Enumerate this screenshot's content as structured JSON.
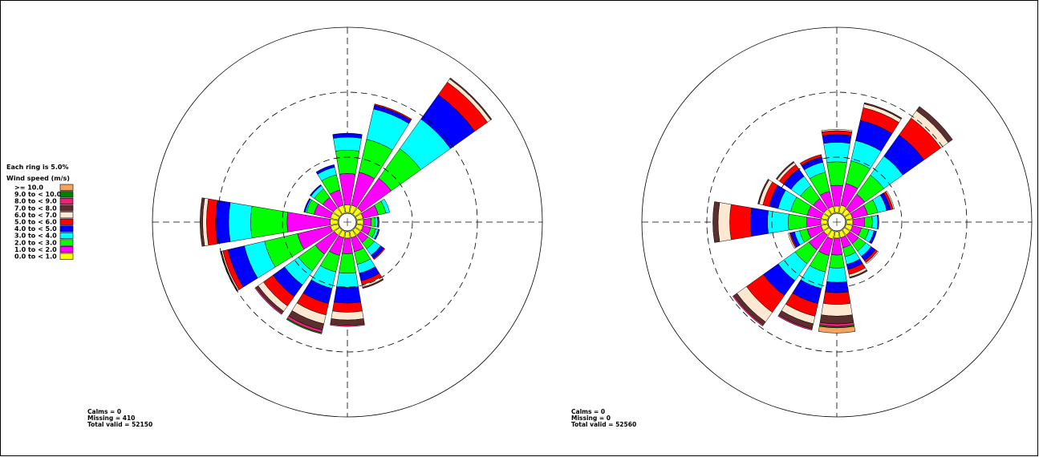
{
  "legend": {
    "ring_note": "Each ring is 5.0%",
    "title": "Wind speed (m/s)",
    "classes": [
      {
        "label": ">= 10.0",
        "color": "#f4a460"
      },
      {
        "label": "9.0 to < 10.0",
        "color": "#008000"
      },
      {
        "label": "8.0 to <  9.0",
        "color": "#e8247a"
      },
      {
        "label": "7.0 to <  8.0",
        "color": "#5c2e2e"
      },
      {
        "label": "6.0 to <  7.0",
        "color": "#ffe8d2"
      },
      {
        "label": "5.0 to <  6.0",
        "color": "#ff0000"
      },
      {
        "label": "4.0 to <  5.0",
        "color": "#0000ff"
      },
      {
        "label": "3.0 to <  4.0",
        "color": "#00ffff"
      },
      {
        "label": "2.0 to <  3.0",
        "color": "#00ff00"
      },
      {
        "label": "1.0 to <  2.0",
        "color": "#ff00ff"
      },
      {
        "label": "0.0 to <  1.0",
        "color": "#ffff00"
      }
    ]
  },
  "chart_data": [
    {
      "type": "windrose",
      "ring_step_percent": 5.0,
      "ring_count": 3,
      "directions_deg": [
        0,
        22.5,
        45,
        67.5,
        90,
        112.5,
        135,
        157.5,
        180,
        202.5,
        225,
        247.5,
        270,
        292.5,
        315,
        337.5
      ],
      "speed_bins_order": "0-1,1-2,2-3,3-4,4-5,5-6,6-7,7-8,8-9,9-10,>=10",
      "frequencies_percent": [
        [
          0.6,
          2.4,
          1.8,
          1.0,
          0.3,
          0.0,
          0.0,
          0.0,
          0.0,
          0.0,
          0.0
        ],
        [
          0.6,
          2.6,
          2.6,
          2.4,
          0.3,
          0.1,
          0.0,
          0.0,
          0.0,
          0.0,
          0.0
        ],
        [
          0.6,
          2.8,
          2.8,
          2.8,
          2.3,
          1.2,
          0.3,
          0.1,
          0.0,
          0.0,
          0.0
        ],
        [
          0.5,
          1.2,
          0.6,
          0.3,
          0.0,
          0.0,
          0.0,
          0.0,
          0.0,
          0.0,
          0.0
        ],
        [
          0.5,
          0.6,
          0.3,
          0.2,
          0.1,
          0.0,
          0.0,
          0.0,
          0.0,
          0.0,
          0.0
        ],
        [
          0.5,
          0.6,
          0.4,
          0.2,
          0.1,
          0.0,
          0.0,
          0.0,
          0.0,
          0.0,
          0.0
        ],
        [
          0.5,
          0.7,
          0.6,
          0.6,
          0.3,
          0.1,
          0.0,
          0.0,
          0.0,
          0.0,
          0.0
        ],
        [
          0.5,
          1.1,
          1.0,
          0.7,
          0.6,
          0.3,
          0.2,
          0.1,
          0.0,
          0.0,
          0.0
        ],
        [
          0.5,
          1.2,
          1.5,
          1.1,
          1.2,
          0.7,
          0.6,
          0.4,
          0.1,
          0.0,
          0.0
        ],
        [
          0.5,
          1.4,
          1.3,
          1.3,
          1.2,
          0.9,
          0.7,
          0.5,
          0.2,
          0.1,
          0.0
        ],
        [
          0.5,
          1.8,
          1.6,
          1.3,
          1.1,
          0.9,
          0.5,
          0.2,
          0.1,
          0.0,
          0.0
        ],
        [
          0.6,
          2.6,
          2.6,
          1.6,
          1.3,
          0.4,
          0.1,
          0.1,
          0.0,
          0.0,
          0.0
        ],
        [
          0.6,
          3.3,
          2.8,
          1.7,
          1.0,
          0.7,
          0.3,
          0.2,
          0.0,
          0.0,
          0.0
        ],
        [
          0.6,
          1.3,
          0.6,
          0.1,
          0.1,
          0.0,
          0.0,
          0.0,
          0.0,
          0.0,
          0.0
        ],
        [
          0.6,
          1.0,
          0.8,
          0.3,
          0.1,
          0.0,
          0.0,
          0.0,
          0.0,
          0.0,
          0.0
        ],
        [
          0.6,
          1.2,
          1.2,
          0.6,
          0.2,
          0.0,
          0.0,
          0.0,
          0.0,
          0.0,
          0.0
        ]
      ],
      "calms": "Calms = 0",
      "missing": "Missing = 410",
      "total": "Total valid = 52150"
    },
    {
      "type": "windrose",
      "ring_step_percent": 5.0,
      "ring_count": 3,
      "directions_deg": [
        0,
        22.5,
        45,
        67.5,
        90,
        112.5,
        135,
        157.5,
        180,
        202.5,
        225,
        247.5,
        270,
        292.5,
        315,
        337.5
      ],
      "speed_bins_order": "0-1,1-2,2-3,3-4,4-5,5-6,6-7,7-8,8-9,9-10,>=10",
      "frequencies_percent": [
        [
          0.5,
          1.6,
          1.8,
          1.5,
          0.6,
          0.3,
          0.1,
          0.0,
          0.0,
          0.0,
          0.0
        ],
        [
          0.6,
          1.7,
          1.8,
          1.6,
          1.6,
          1.0,
          0.3,
          0.1,
          0.0,
          0.0,
          0.0
        ],
        [
          0.5,
          1.4,
          1.8,
          1.8,
          2.0,
          1.6,
          0.7,
          0.4,
          0.0,
          0.0,
          0.0
        ],
        [
          0.5,
          1.2,
          0.8,
          0.7,
          0.3,
          0.2,
          0.1,
          0.0,
          0.0,
          0.0,
          0.0
        ],
        [
          0.5,
          0.9,
          0.6,
          0.4,
          0.1,
          0.0,
          0.0,
          0.0,
          0.0,
          0.0,
          0.0
        ],
        [
          0.5,
          0.7,
          0.6,
          0.4,
          0.2,
          0.0,
          0.0,
          0.0,
          0.0,
          0.0,
          0.0
        ],
        [
          0.5,
          0.8,
          0.7,
          0.5,
          0.4,
          0.2,
          0.1,
          0.0,
          0.0,
          0.0,
          0.0
        ],
        [
          0.5,
          0.8,
          0.7,
          0.6,
          0.4,
          0.4,
          0.2,
          0.1,
          0.0,
          0.0,
          0.0
        ],
        [
          0.5,
          1.3,
          1.0,
          1.1,
          0.8,
          0.9,
          0.9,
          0.6,
          0.2,
          0.1,
          0.4
        ],
        [
          0.6,
          1.3,
          1.3,
          1.3,
          1.2,
          1.0,
          0.6,
          0.4,
          0.1,
          0.0,
          0.0
        ],
        [
          0.5,
          1.4,
          1.3,
          1.6,
          1.4,
          1.6,
          0.9,
          0.3,
          0.1,
          0.0,
          0.0
        ],
        [
          0.5,
          1.1,
          0.6,
          0.4,
          0.3,
          0.1,
          0.1,
          0.0,
          0.0,
          0.0,
          0.0
        ],
        [
          0.5,
          1.1,
          1.4,
          1.6,
          1.3,
          1.6,
          0.9,
          0.4,
          0.0,
          0.0,
          0.0
        ],
        [
          0.5,
          1.1,
          1.3,
          1.0,
          0.7,
          0.5,
          0.3,
          0.1,
          0.0,
          0.0,
          0.0
        ],
        [
          0.5,
          1.0,
          1.2,
          0.9,
          0.7,
          0.4,
          0.2,
          0.1,
          0.0,
          0.0,
          0.0
        ],
        [
          0.5,
          1.2,
          1.5,
          0.8,
          0.4,
          0.2,
          0.0,
          0.0,
          0.0,
          0.0,
          0.0
        ]
      ],
      "calms": "Calms = 0",
      "missing": "Missing = 0",
      "total": "Total valid = 52560"
    }
  ]
}
